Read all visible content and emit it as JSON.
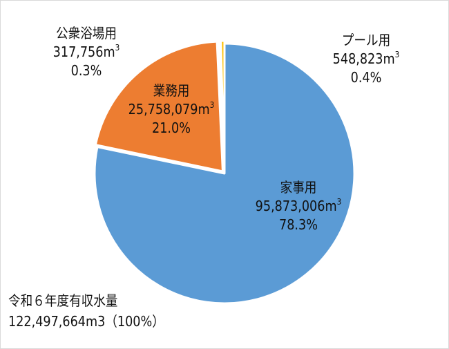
{
  "chart_data": {
    "type": "pie",
    "title": "",
    "unit": "m3",
    "start_angle_deg": 0,
    "direction": "clockwise",
    "slices": [
      {
        "name": "家事用",
        "value": 95873006,
        "value_label": "95,873,006m",
        "percent": 78.3,
        "percent_label": "78.3%",
        "color": "#5B9BD5"
      },
      {
        "name": "業務用",
        "value": 25758079,
        "value_label": "25,758,079m",
        "percent": 21.0,
        "percent_label": "21.0%",
        "color": "#ED7D31"
      },
      {
        "name": "公衆浴場用",
        "value": 317756,
        "value_label": "317,756m",
        "percent": 0.3,
        "percent_label": "0.3%",
        "color": "#A5A5A5"
      },
      {
        "name": "プール用",
        "value": 548823,
        "value_label": "548,823m",
        "percent": 0.4,
        "percent_label": "0.4%",
        "color": "#FFC000"
      }
    ],
    "total": {
      "label": "令和６年度有収水量",
      "value": 122497664,
      "value_label": "122,497,664m3（100%）"
    },
    "legend": "none (data labels on/near slices)"
  },
  "labels": {
    "household": {
      "name": "家事用",
      "value": "95,873,006m",
      "sup": "3",
      "percent": "78.3%"
    },
    "business": {
      "name": "業務用",
      "value": "25,758,079m",
      "sup": "3",
      "percent": "21.0%"
    },
    "bath": {
      "name": "公衆浴場用",
      "value": "317,756m",
      "sup": "3",
      "percent": "0.3%"
    },
    "pool": {
      "name": "プール用",
      "value": "548,823m",
      "sup": "3",
      "percent": "0.4%"
    }
  },
  "total": {
    "title": "令和６年度有収水量",
    "value": "122,497,664m3（100%）"
  }
}
